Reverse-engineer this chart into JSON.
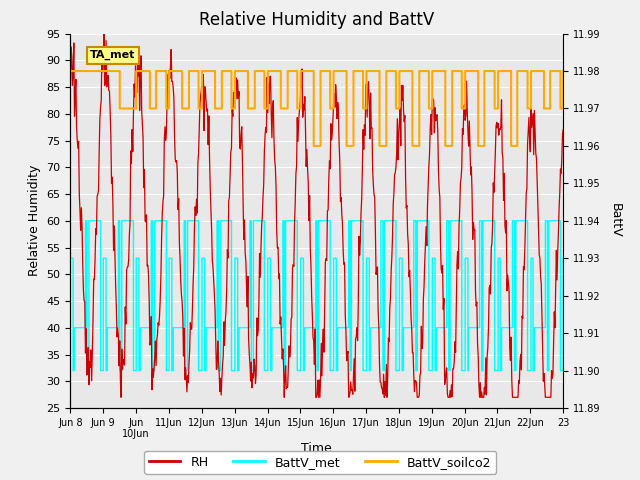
{
  "title": "Relative Humidity and BattV",
  "ylabel_left": "Relative Humidity",
  "ylabel_right": "BattV",
  "xlabel": "Time",
  "ylim_left": [
    25,
    95
  ],
  "ylim_right": [
    11.89,
    11.99
  ],
  "yticks_left": [
    25,
    30,
    35,
    40,
    45,
    50,
    55,
    60,
    65,
    70,
    75,
    80,
    85,
    90,
    95
  ],
  "yticks_right": [
    11.89,
    11.9,
    11.91,
    11.92,
    11.93,
    11.94,
    11.95,
    11.96,
    11.97,
    11.98,
    11.99
  ],
  "xtick_labels": [
    "Jun 8",
    "Jun 9",
    "Jun\n10Jun",
    "11Jun",
    "12Jun",
    "13Jun",
    "14Jun",
    "15Jun",
    "16Jun",
    "17Jun",
    "18Jun",
    "19Jun",
    "20Jun",
    "21Jun",
    "22Jun",
    "23"
  ],
  "annotation_text": "TA_met",
  "bg_color": "#e8e8e8",
  "fig_bg_color": "#f0f0f0",
  "grid_color": "#ffffff",
  "rh_color": "#cc0000",
  "battv_met_color": "#00ffff",
  "battv_soilco2_color": "#ffaa00",
  "legend_labels": [
    "RH",
    "BattV_met",
    "BattV_soilco2"
  ]
}
